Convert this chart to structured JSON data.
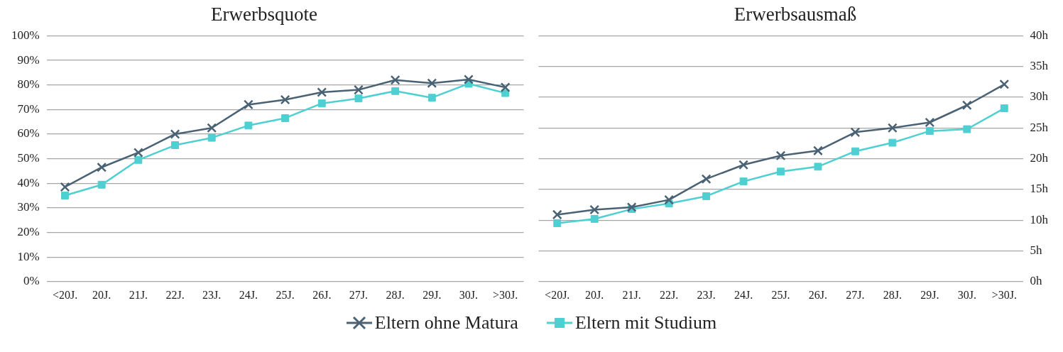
{
  "chart_data": [
    {
      "type": "line",
      "title": "Erwerbsquote",
      "categories": [
        "<20J.",
        "20J.",
        "21J.",
        "22J.",
        "23J.",
        "24J.",
        "25J.",
        "26J.",
        "27J.",
        "28J.",
        "29J.",
        "30J.",
        ">30J."
      ],
      "series": [
        {
          "name": "Eltern ohne Matura",
          "color": "#4a6274",
          "marker": "cross",
          "values": [
            38.5,
            46.5,
            52.5,
            60,
            62.5,
            72,
            74,
            77,
            78,
            82,
            80.7,
            82.2,
            79
          ]
        },
        {
          "name": "Eltern mit Studium",
          "color": "#4ecfd2",
          "marker": "square",
          "values": [
            35,
            39.4,
            49.5,
            55.5,
            58.5,
            63.5,
            66.5,
            72.5,
            74.5,
            77.5,
            74.8,
            80.5,
            76.7
          ]
        }
      ],
      "ylim": [
        0,
        100
      ],
      "yticks": [
        {
          "value": 0,
          "label": "0%"
        },
        {
          "value": 10,
          "label": "10%"
        },
        {
          "value": 20,
          "label": "20%"
        },
        {
          "value": 30,
          "label": "30%"
        },
        {
          "value": 40,
          "label": "40%"
        },
        {
          "value": 50,
          "label": "50%"
        },
        {
          "value": 60,
          "label": "60%"
        },
        {
          "value": 70,
          "label": "70%"
        },
        {
          "value": 80,
          "label": "80%"
        },
        {
          "value": 90,
          "label": "90%"
        },
        {
          "value": 100,
          "label": "100%"
        }
      ],
      "grid": "y",
      "legend": "bottom"
    },
    {
      "type": "line",
      "title": "Erwerbsausmaß",
      "categories": [
        "<20J.",
        "20J.",
        "21J.",
        "22J.",
        "23J.",
        "24J.",
        "25J.",
        "26J.",
        "27J.",
        "28J.",
        "29J.",
        "30J.",
        ">30J."
      ],
      "series": [
        {
          "name": "Eltern ohne Matura",
          "color": "#4a6274",
          "marker": "cross",
          "axis": "y2",
          "values": [
            10.9,
            11.7,
            12.1,
            13.3,
            16.7,
            19,
            20.5,
            21.3,
            24.3,
            25,
            25.9,
            28.7,
            32.1
          ]
        },
        {
          "name": "Eltern mit Studium",
          "color": "#4ecfd2",
          "marker": "square",
          "axis": "y2",
          "values": [
            9.5,
            10.2,
            11.8,
            12.7,
            13.9,
            16.3,
            17.9,
            18.7,
            21.2,
            22.6,
            24.5,
            24.8,
            28.2
          ]
        }
      ],
      "y2lim": [
        0,
        40
      ],
      "y2ticks": [
        {
          "value": 0,
          "label": "0h"
        },
        {
          "value": 5,
          "label": "5h"
        },
        {
          "value": 10,
          "label": "10h"
        },
        {
          "value": 15,
          "label": "15h"
        },
        {
          "value": 20,
          "label": "20h"
        },
        {
          "value": 25,
          "label": "25h"
        },
        {
          "value": 30,
          "label": "30h"
        },
        {
          "value": 35,
          "label": "35h"
        },
        {
          "value": 40,
          "label": "40h"
        }
      ],
      "grid": "y",
      "legend": "bottom"
    }
  ]
}
